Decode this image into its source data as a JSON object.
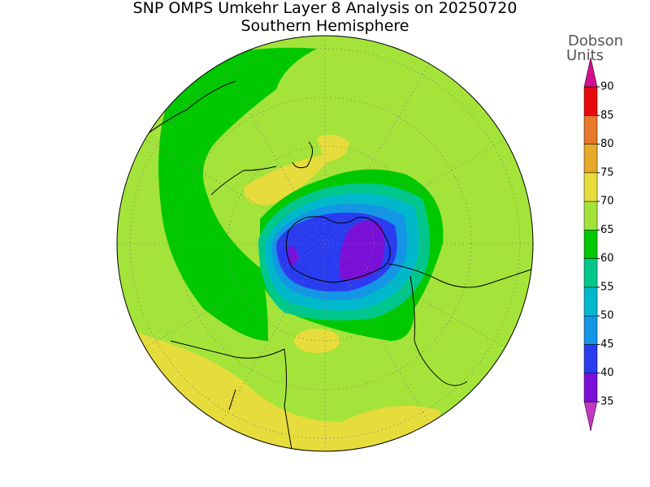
{
  "header": {
    "title": "SNP OMPS Umkehr Layer 8 Analysis on 20250720",
    "subtitle": "Southern Hemisphere"
  },
  "colorbar": {
    "label_lines": [
      "Dobson",
      "Units"
    ],
    "levels": [
      35,
      40,
      45,
      50,
      55,
      60,
      65,
      70,
      75,
      80,
      85,
      90
    ],
    "colors": [
      "#c238c0",
      "#7a10d8",
      "#2a3cf0",
      "#1496e6",
      "#00b8cc",
      "#00c88c",
      "#00c800",
      "#a4e43a",
      "#e6dc3c",
      "#e6aa28",
      "#e8782a",
      "#e80a0a",
      "#d2108c"
    ]
  }
}
